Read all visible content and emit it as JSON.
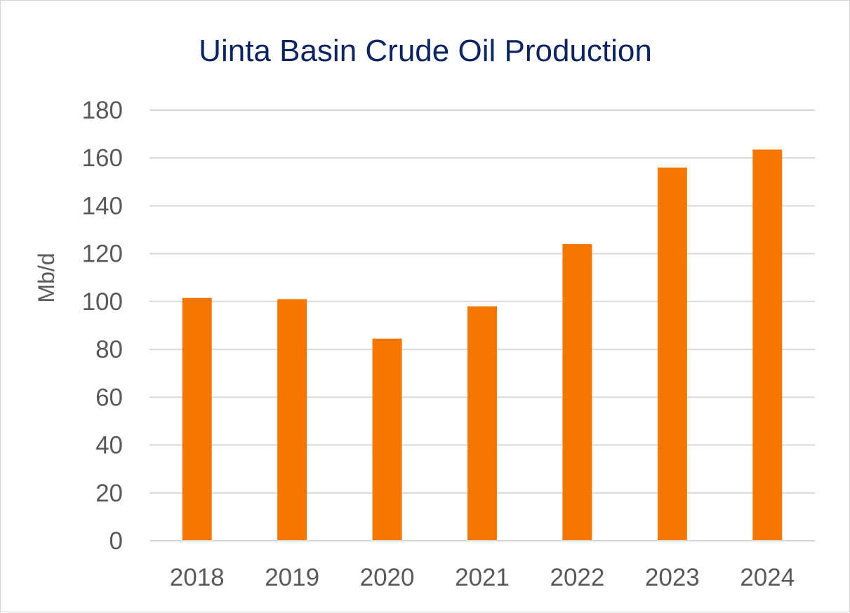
{
  "chart_data": {
    "type": "bar",
    "title": "Uinta Basin Crude Oil Production",
    "xlabel": "",
    "ylabel": "Mb/d",
    "categories": [
      "2018",
      "2019",
      "2020",
      "2021",
      "2022",
      "2023",
      "2024"
    ],
    "values": [
      101.5,
      101,
      84.5,
      98,
      124,
      156,
      163.5
    ],
    "ylim": [
      0,
      180
    ],
    "yticks": [
      0,
      20,
      40,
      60,
      80,
      100,
      120,
      140,
      160,
      180
    ],
    "grid": true,
    "legend": "none",
    "bar_color": "#f57600",
    "title_color": "#0c2461"
  }
}
